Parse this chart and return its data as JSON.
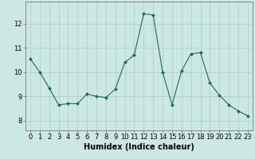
{
  "x": [
    0,
    1,
    2,
    3,
    4,
    5,
    6,
    7,
    8,
    9,
    10,
    11,
    12,
    13,
    14,
    15,
    16,
    17,
    18,
    19,
    20,
    21,
    22,
    23
  ],
  "y": [
    10.55,
    10.0,
    9.35,
    8.65,
    8.7,
    8.7,
    9.1,
    9.0,
    8.95,
    9.3,
    10.4,
    10.7,
    12.4,
    12.35,
    10.0,
    8.65,
    10.05,
    10.75,
    10.8,
    9.55,
    9.05,
    8.65,
    8.4,
    8.2
  ],
  "line_color": "#1a6b5a",
  "marker": "D",
  "marker_size": 2,
  "bg_color": "#cce8e4",
  "grid_color": "#aaccc8",
  "xlabel": "Humidex (Indice chaleur)",
  "xlabel_fontsize": 7,
  "yticks": [
    8,
    9,
    10,
    11,
    12
  ],
  "xticks": [
    0,
    1,
    2,
    3,
    4,
    5,
    6,
    7,
    8,
    9,
    10,
    11,
    12,
    13,
    14,
    15,
    16,
    17,
    18,
    19,
    20,
    21,
    22,
    23
  ],
  "ylim": [
    7.6,
    12.9
  ],
  "xlim": [
    -0.5,
    23.5
  ],
  "tick_fontsize": 6,
  "lw": 0.8
}
